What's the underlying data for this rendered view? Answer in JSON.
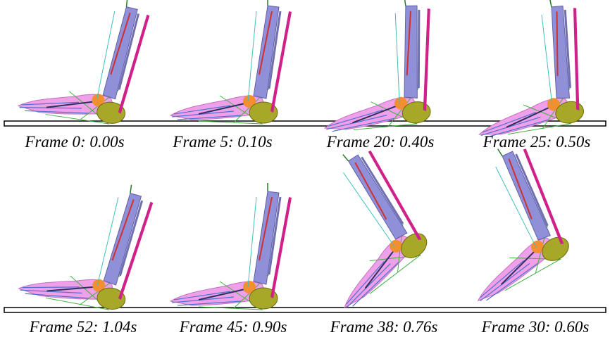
{
  "figure": {
    "rows": [
      {
        "panels": [
          {
            "caption": "Frame 0: 0.00s"
          },
          {
            "caption": "Frame 5: 0.10s"
          },
          {
            "caption": "Frame 20: 0.40s"
          },
          {
            "caption": "Frame 25: 0.50s"
          }
        ]
      },
      {
        "panels": [
          {
            "caption": "Frame 52: 1.04s"
          },
          {
            "caption": "Frame 45: 0.90s"
          },
          {
            "caption": "Frame 38: 0.76s"
          },
          {
            "caption": "Frame 30: 0.60s"
          }
        ]
      }
    ]
  }
}
